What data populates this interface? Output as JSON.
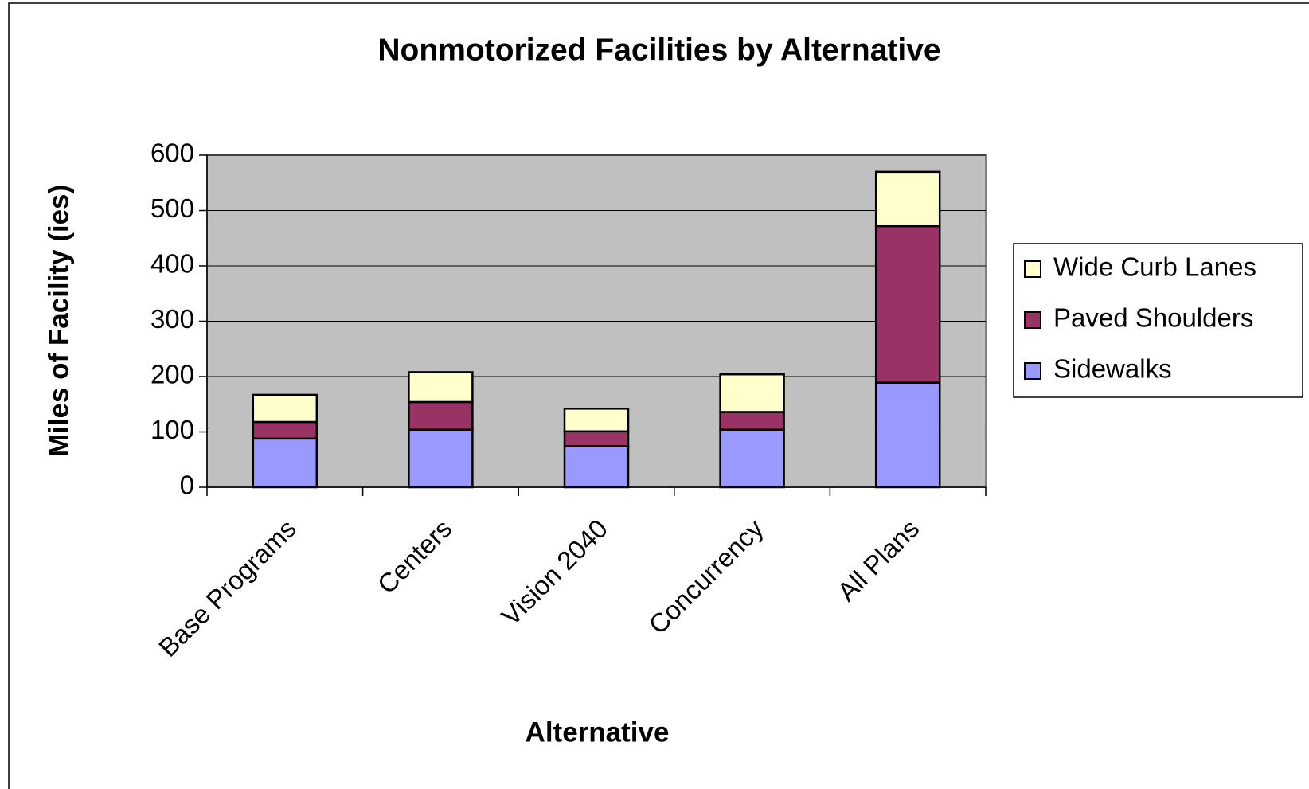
{
  "chart_data": {
    "type": "stacked_bar",
    "title": "Nonmotorized Facilities by Alternative",
    "x_label": "Alternative",
    "y_label": "Miles of Facility (ies)",
    "categories": [
      "Base Programs",
      "Centers",
      "Vision 2040",
      "Concurrency",
      "All Plans"
    ],
    "series": [
      {
        "name": "Sidewalks",
        "color": "#9999ff",
        "values": [
          88,
          104,
          74,
          104,
          189
        ]
      },
      {
        "name": "Paved Shoulders",
        "color": "#993366",
        "values": [
          30,
          50,
          27,
          32,
          283
        ]
      },
      {
        "name": "Wide Curb Lanes",
        "color": "#ffffcc",
        "values": [
          49,
          54,
          41,
          68,
          98
        ]
      }
    ],
    "ylim": [
      0,
      600
    ],
    "yticks": [
      0,
      100,
      200,
      300,
      400,
      500,
      600
    ],
    "grid": true,
    "legend": "right"
  }
}
